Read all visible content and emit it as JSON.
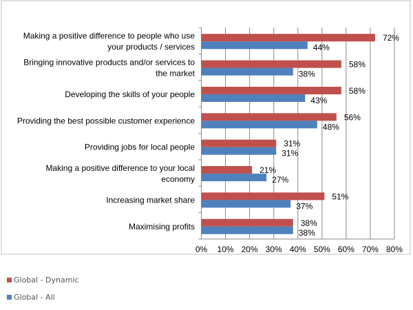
{
  "chart_data": {
    "type": "bar",
    "orientation": "horizontal",
    "categories": [
      "Making a positive difference to people who use your products / services",
      "Bringing innovative products and/or services to the market",
      "Developing the skills of your people",
      "Providing the best possible customer experience",
      "Providing jobs for local people",
      "Making a positive difference to your local economy",
      "Increasing market share",
      "Maximising profits"
    ],
    "category_lines": [
      [
        "Making a positive difference to people who use",
        "your products / services"
      ],
      [
        "Bringing innovative products and/or services to",
        "the market"
      ],
      [
        "Developing the skills of your people"
      ],
      [
        "Providing the best possible customer experience"
      ],
      [
        "Providing jobs for local people"
      ],
      [
        "Making a positive difference to your local",
        "economy"
      ],
      [
        "Increasing market share"
      ],
      [
        "Maximising profits"
      ]
    ],
    "series": [
      {
        "name": "Global - Dynamic",
        "color": "#c0504d",
        "values": [
          72,
          58,
          58,
          56,
          31,
          21,
          51,
          38
        ]
      },
      {
        "name": "Global - All",
        "color": "#4f81bd",
        "values": [
          44,
          38,
          43,
          48,
          31,
          27,
          37,
          38
        ]
      }
    ],
    "xlim": [
      0,
      80
    ],
    "xticks": [
      "0%",
      "10%",
      "20%",
      "30%",
      "40%",
      "50%",
      "60%",
      "70%",
      "80%"
    ],
    "value_suffix": "%",
    "grid": "vertical",
    "legend": "bottom-left",
    "title": "",
    "xlabel": "",
    "ylabel": ""
  }
}
